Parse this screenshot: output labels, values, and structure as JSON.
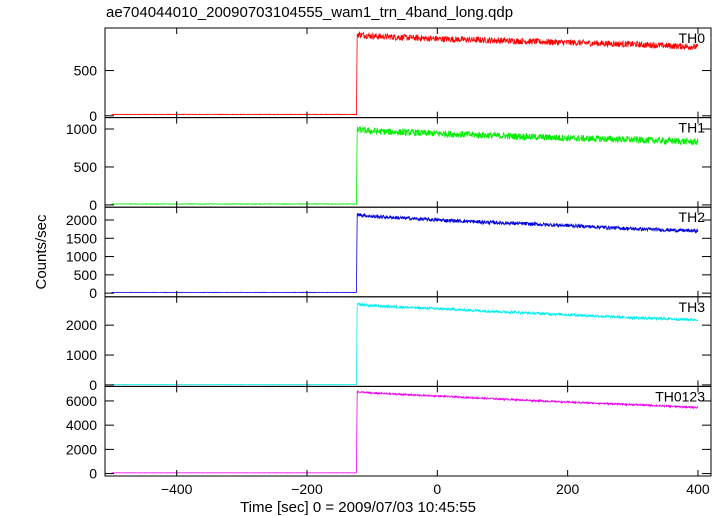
{
  "title": "ae704044010_20090703104555_wam1_trn_4band_long.qdp",
  "chart_data": {
    "type": "line",
    "xlabel": "Time [sec] 0 = 2009/07/03 10:45:55",
    "ylabel": "Counts/sec",
    "xlim": [
      -510,
      420
    ],
    "x_ticks": [
      -400,
      -200,
      0,
      200,
      400
    ],
    "x_tick_labels": [
      "−400",
      "−200",
      "0",
      "200",
      "400"
    ],
    "onset_time": -123,
    "panels": [
      {
        "name": "TH0",
        "color": "#ff0000",
        "ylim": [
          -20,
          970
        ],
        "y_ticks": [
          0,
          500
        ],
        "y_tick_labels": [
          "0",
          "500"
        ],
        "series": {
          "x": [
            -500,
            -130,
            -124,
            -123,
            -100,
            0,
            100,
            200,
            300,
            400
          ],
          "y": [
            15,
            15,
            15,
            900,
            880,
            850,
            830,
            810,
            790,
            760
          ],
          "noise": 35
        }
      },
      {
        "name": "TH1",
        "color": "#00ee00",
        "ylim": [
          -30,
          1150
        ],
        "y_ticks": [
          0,
          500,
          1000
        ],
        "y_tick_labels": [
          "0",
          "500",
          "1000"
        ],
        "series": {
          "x": [
            -500,
            -130,
            -124,
            -123,
            -100,
            0,
            100,
            200,
            300,
            400
          ],
          "y": [
            12,
            12,
            12,
            990,
            970,
            940,
            910,
            880,
            860,
            830
          ],
          "noise": 45
        }
      },
      {
        "name": "TH2",
        "color": "#0000dd",
        "ylim": [
          -100,
          2350
        ],
        "y_ticks": [
          0,
          500,
          1000,
          1500,
          2000
        ],
        "y_tick_labels": [
          "0",
          "500",
          "1000",
          "1500",
          "2000"
        ],
        "series": {
          "x": [
            -500,
            -130,
            -124,
            -123,
            -100,
            0,
            100,
            200,
            300,
            400
          ],
          "y": [
            20,
            20,
            20,
            2150,
            2100,
            2000,
            1920,
            1850,
            1760,
            1700
          ],
          "noise": 50
        }
      },
      {
        "name": "TH3",
        "color": "#00eeee",
        "ylim": [
          -50,
          2950
        ],
        "y_ticks": [
          0,
          1000,
          2000
        ],
        "y_tick_labels": [
          "0",
          "1000",
          "2000"
        ],
        "series": {
          "x": [
            -500,
            -130,
            -124,
            -123,
            -100,
            0,
            100,
            200,
            300,
            400
          ],
          "y": [
            10,
            10,
            10,
            2700,
            2650,
            2550,
            2450,
            2350,
            2250,
            2180
          ],
          "noise": 45
        }
      },
      {
        "name": "TH0123",
        "color": "#ee00ee",
        "ylim": [
          -200,
          7200
        ],
        "y_ticks": [
          0,
          2000,
          4000,
          6000
        ],
        "y_tick_labels": [
          "0",
          "2000",
          "4000",
          "6000"
        ],
        "series": {
          "x": [
            -500,
            -130,
            -124,
            -123,
            -100,
            0,
            100,
            200,
            300,
            400
          ],
          "y": [
            60,
            60,
            60,
            6750,
            6650,
            6400,
            6150,
            5900,
            5700,
            5450
          ],
          "noise": 70
        }
      }
    ]
  }
}
